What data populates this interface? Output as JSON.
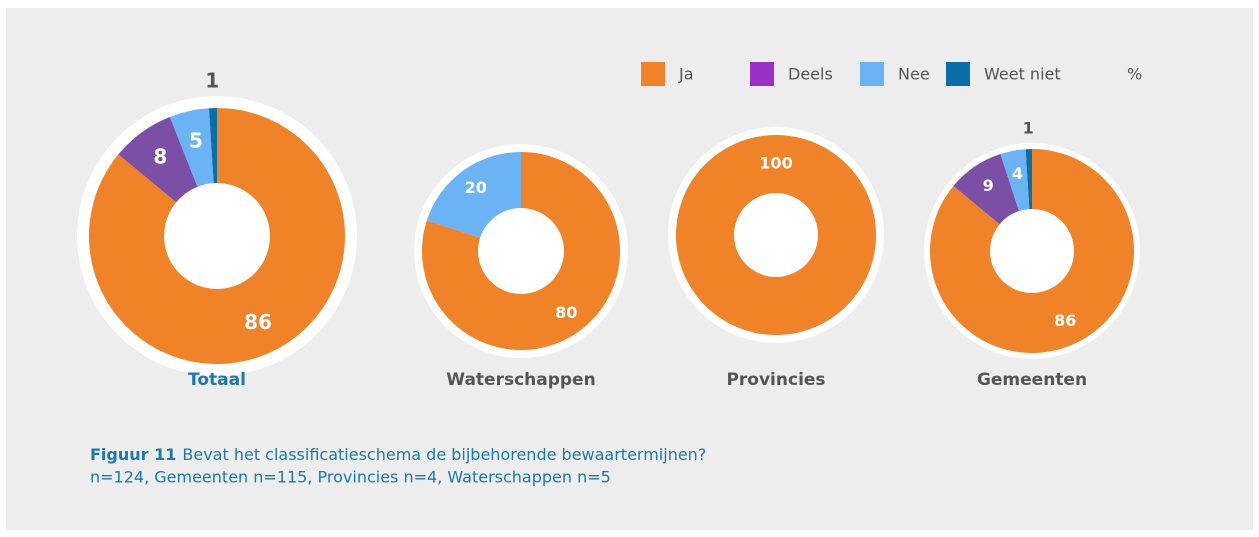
{
  "legend": {
    "categories": [
      "Ja",
      "Deels",
      "Nee",
      "Weet niet"
    ],
    "colors": [
      "#f08228",
      "#7b4fa6",
      "#6ab4f5",
      "#0a6fa8"
    ],
    "legend_colors": [
      "#f08228",
      "#9b30c8",
      "#6ab4f5",
      "#0a6fa8"
    ],
    "unit": "%"
  },
  "chart_data": [
    {
      "type": "donut",
      "title": "Totaal",
      "title_color": "#1a7ab0",
      "values": [
        86,
        8,
        5,
        1
      ]
    },
    {
      "type": "donut",
      "title": "Waterschappen",
      "title_color": "#555555",
      "values": [
        80,
        0,
        20,
        0
      ]
    },
    {
      "type": "donut",
      "title": "Provincies",
      "title_color": "#555555",
      "values": [
        100,
        0,
        0,
        0
      ]
    },
    {
      "type": "donut",
      "title": "Gemeenten",
      "title_color": "#555555",
      "values": [
        86,
        9,
        4,
        1
      ]
    }
  ],
  "caption": {
    "label": "Figuur 11",
    "text": "Bevat het classificatieschema de bijbehorende bewaartermijnen?",
    "note": "n=124, Gemeenten n=115, Provincies n=4, Waterschappen n=5"
  }
}
